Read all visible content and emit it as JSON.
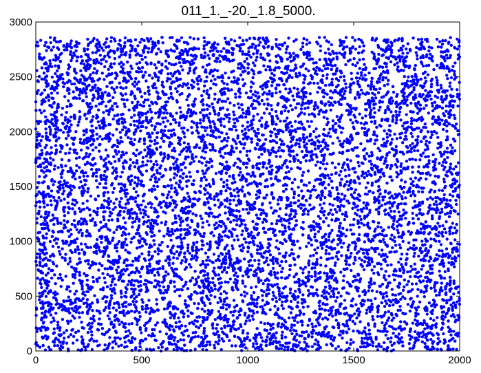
{
  "chart_data": {
    "type": "scatter",
    "title": "011_1._-20._1.8_5000.",
    "xlabel": "",
    "ylabel": "",
    "xlim": [
      0,
      2000
    ],
    "ylim": [
      0,
      3000
    ],
    "xticks": [
      0,
      500,
      1000,
      1500,
      2000
    ],
    "yticks": [
      0,
      500,
      1000,
      1500,
      2000,
      2500,
      3000
    ],
    "grid": false,
    "marker_color": "#0000ff",
    "series": [
      {
        "point_count": 9000,
        "x_range": [
          0,
          2000
        ],
        "y_range": [
          0,
          2860
        ],
        "distribution": "dense uniform scatter"
      }
    ]
  }
}
